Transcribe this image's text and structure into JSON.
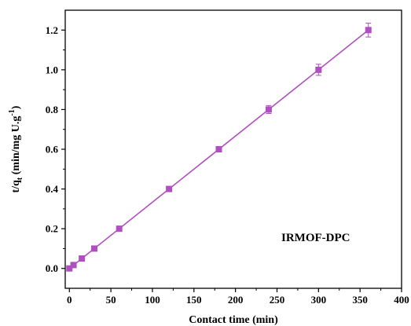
{
  "chart_data": {
    "type": "scatter",
    "xlabel": "Contact time (min)",
    "ylabel": {
      "prefix": "t/q",
      "sub": "t",
      "text": " (min/mg U.g",
      "sup": "-1",
      "suffix": ")"
    },
    "annotation": "IRMOF-DPC",
    "xlim": [
      -5,
      400
    ],
    "ylim": [
      -0.1,
      1.3
    ],
    "xticks": [
      0,
      50,
      100,
      150,
      200,
      250,
      300,
      350,
      400
    ],
    "xtick_labels": [
      "0",
      "50",
      "100",
      "150",
      "200",
      "250",
      "300",
      "350",
      "400"
    ],
    "yticks": [
      0.0,
      0.2,
      0.4,
      0.6,
      0.8,
      1.0,
      1.2
    ],
    "ytick_labels": [
      "0.0",
      "0.2",
      "0.4",
      "0.6",
      "0.8",
      "1.0",
      "1.2"
    ],
    "grid": false,
    "series": [
      {
        "marker": "square",
        "color": "#b04fbf",
        "x": [
          0,
          5,
          15,
          30,
          60,
          120,
          180,
          240,
          300,
          360
        ],
        "y": [
          0.0,
          0.017,
          0.05,
          0.1,
          0.2,
          0.4,
          0.6,
          0.8,
          1.0,
          1.2
        ],
        "yerr": [
          0.005,
          0.005,
          0.005,
          0.005,
          0.006,
          0.008,
          0.012,
          0.02,
          0.028,
          0.035
        ],
        "fit_line": {
          "x": [
            0,
            360
          ],
          "y": [
            0.0,
            1.2
          ]
        }
      }
    ]
  }
}
